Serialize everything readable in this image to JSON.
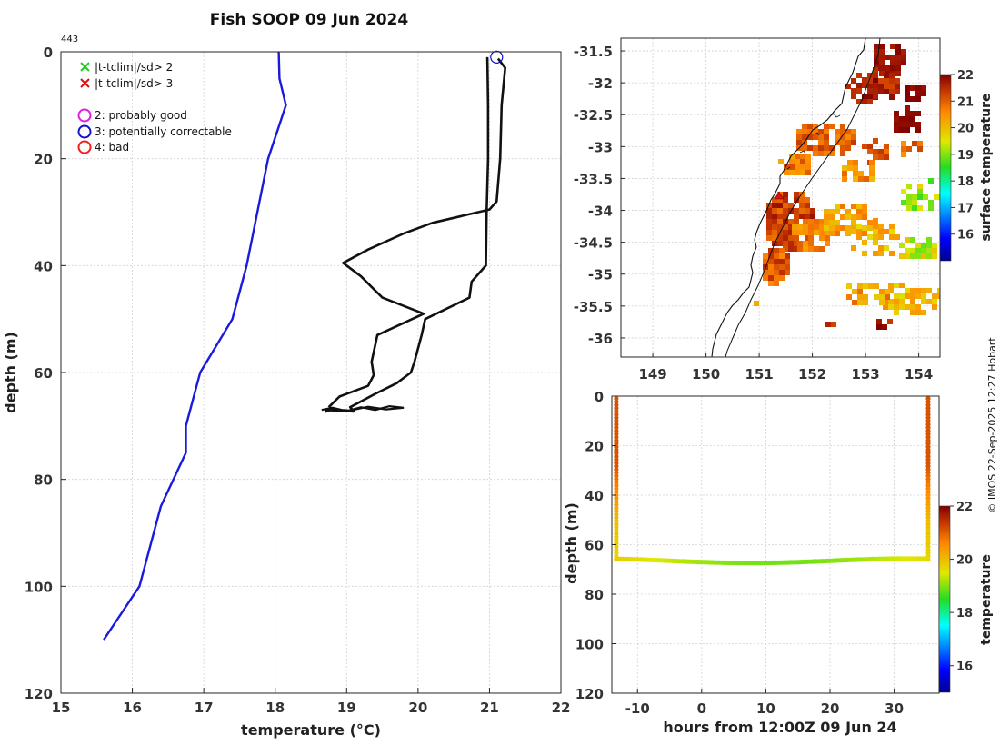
{
  "title": "Fish SOOP 09 Jun 2024",
  "copyright": "© IMOS 22-Sep-2025 12:27 Hobart",
  "chart_data": [
    {
      "id": "profile",
      "type": "line",
      "profile_id": "443",
      "xlabel": "temperature (°C)",
      "ylabel": "depth (m)",
      "xlim": [
        15,
        22
      ],
      "ylim": [
        0,
        120
      ],
      "y_reversed": true,
      "xticks": [
        15,
        16,
        17,
        18,
        19,
        20,
        21,
        22
      ],
      "yticks": [
        0,
        20,
        40,
        60,
        80,
        100,
        120
      ],
      "legend": [
        {
          "marker": "x",
          "color": "#22cc22",
          "label": "|t-tclim|/sd> 2"
        },
        {
          "marker": "x",
          "color": "#dd1111",
          "label": "|t-tclim|/sd> 3"
        },
        {
          "marker": "o",
          "color": "#dd22dd",
          "label": "2: probably good"
        },
        {
          "marker": "o",
          "color": "#1111cc",
          "label": "3: potentially correctable"
        },
        {
          "marker": "o",
          "color": "#ee2222",
          "label": "4: bad"
        }
      ],
      "series": [
        {
          "name": "climatology",
          "color": "#1a1adc",
          "points": [
            [
              18.05,
              0
            ],
            [
              18.06,
              5
            ],
            [
              18.15,
              10
            ],
            [
              17.9,
              20
            ],
            [
              17.6,
              40
            ],
            [
              17.4,
              50
            ],
            [
              16.95,
              60
            ],
            [
              16.75,
              70
            ],
            [
              16.75,
              75
            ],
            [
              16.4,
              85
            ],
            [
              16.1,
              100
            ],
            [
              15.6,
              110
            ]
          ]
        },
        {
          "name": "profile",
          "color": "#111111",
          "points": [
            [
              20.97,
              1
            ],
            [
              20.98,
              10
            ],
            [
              20.98,
              20
            ],
            [
              20.96,
              30
            ],
            [
              20.95,
              40
            ],
            [
              20.75,
              43
            ],
            [
              20.72,
              46
            ],
            [
              20.1,
              50
            ],
            [
              20.05,
              53
            ],
            [
              19.95,
              58
            ],
            [
              19.9,
              60
            ],
            [
              19.7,
              62
            ],
            [
              19.4,
              64
            ],
            [
              19.05,
              66.5
            ],
            [
              19.1,
              67.3
            ],
            [
              18.7,
              67.0
            ]
          ]
        },
        {
          "name": "profile-return",
          "color": "#111111",
          "points": [
            [
              18.75,
              66.5
            ],
            [
              18.9,
              64.5
            ],
            [
              19.3,
              62.5
            ],
            [
              19.38,
              60.5
            ],
            [
              19.35,
              58
            ],
            [
              19.43,
              53
            ],
            [
              20.08,
              49
            ],
            [
              19.5,
              46
            ],
            [
              19.35,
              44
            ],
            [
              19.2,
              42
            ],
            [
              18.95,
              39.5
            ],
            [
              19.3,
              37
            ],
            [
              19.8,
              34
            ],
            [
              20.2,
              32
            ],
            [
              21.0,
              29.5
            ],
            [
              21.1,
              28
            ],
            [
              21.15,
              20
            ],
            [
              21.17,
              10
            ],
            [
              21.22,
              3
            ],
            [
              21.12,
              1.3
            ]
          ]
        }
      ],
      "flag_circle": {
        "x": 21.1,
        "y": 1,
        "color": "#1111cc"
      }
    },
    {
      "id": "sst-map",
      "type": "heatmap",
      "xlim": [
        148.4,
        154.4
      ],
      "ylim": [
        -36.3,
        -31.3
      ],
      "xticks": [
        149,
        150,
        151,
        152,
        153,
        154
      ],
      "yticks": [
        -31.5,
        -32,
        -32.5,
        -33,
        -33.5,
        -34,
        -34.5,
        -35,
        -35.5,
        -36
      ],
      "colorbar_label": "surface temperature",
      "colorbar_range": [
        15,
        22
      ],
      "colorbar_ticks": [
        16,
        17,
        18,
        19,
        20,
        21,
        22
      ],
      "marker": {
        "x": 151.35,
        "y": -33.8,
        "color": "#dd1111"
      }
    },
    {
      "id": "section",
      "type": "scatter",
      "xlabel": "hours from 12:00Z 09 Jun 24",
      "ylabel": "depth (m)",
      "xlim": [
        -14,
        37
      ],
      "ylim": [
        0,
        120
      ],
      "y_reversed": true,
      "xticks": [
        -10,
        0,
        10,
        20,
        30
      ],
      "yticks": [
        0,
        20,
        40,
        60,
        80,
        100,
        120
      ],
      "colorbar_label": "temperature",
      "colorbar_range": [
        15,
        22
      ],
      "colorbar_ticks": [
        16,
        18,
        20,
        22
      ],
      "cast_left_hour": -13.3,
      "cast_right_hour": 35.3,
      "bottom_depth": 66.5
    }
  ]
}
